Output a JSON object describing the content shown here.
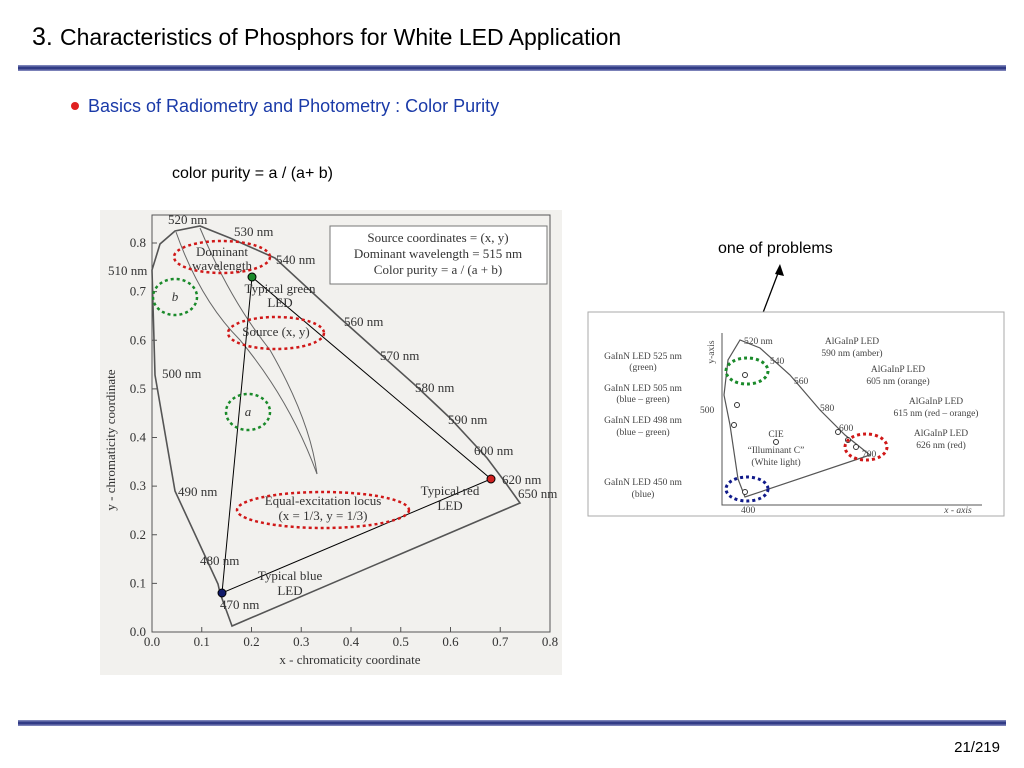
{
  "header": {
    "number": "3.",
    "title": "Characteristics of Phosphors for White LED Application"
  },
  "bullet": "Basics of Radiometry and Photometry : Color Purity",
  "formula": "color purity = a / (a+ b)",
  "left_figure": {
    "xlabel": "x - chromaticity coordinate",
    "ylabel": "y - chromaticity  coordinate",
    "xticks": [
      "0.0",
      "0.1",
      "0.2",
      "0.3",
      "0.4",
      "0.5",
      "0.6",
      "0.7",
      "0.8"
    ],
    "yticks": [
      "0.0",
      "0.1",
      "0.2",
      "0.3",
      "0.4",
      "0.5",
      "0.6",
      "0.7",
      "0.8"
    ],
    "wavelengths": [
      "520 nm",
      "530 nm",
      "540 nm",
      "560 nm",
      "570 nm",
      "580 nm",
      "590 nm",
      "600 nm",
      "620 nm",
      "650 nm",
      "510 nm",
      "500 nm",
      "490 nm",
      "480 nm",
      "470 nm"
    ],
    "legend": [
      "Source coordinates = (x, y)",
      "Dominant wavelength = 515 nm",
      "Color purity  =  a / (a + b)"
    ],
    "annotations": [
      "Dominant",
      "wavelength",
      "Typical green",
      "LED",
      "Source (x, y)",
      "b",
      "a",
      "Equal-excitation locus",
      "(x = 1/3, y = 1/3)",
      "Typical red",
      "LED",
      "Typical blue",
      "LED"
    ]
  },
  "callout": "one of problems",
  "right_figure": {
    "axis_labels": [
      "y-axis",
      "x - axis"
    ],
    "wavelengths": [
      "520 nm",
      "540",
      "560",
      "580",
      "600",
      "700",
      "500",
      "400"
    ],
    "labels": [
      "GaInN  LED 525 nm",
      "(green)",
      "GaInN  LED 505 nm",
      "(blue – green)",
      "GaInN  LED 498 nm",
      "(blue – green)",
      "GaInN  LED 450 nm",
      "(blue)",
      "CIE",
      "“Illuminant C”",
      "(White light)",
      "AlGaInP LED",
      "590 nm (amber)",
      "AlGaInP LED",
      "605 nm (orange)",
      "AlGaInP LED",
      "615 nm (red – orange)",
      "AlGaInP LED",
      "626 nm (red)"
    ]
  },
  "footer": {
    "page": "21/219"
  }
}
